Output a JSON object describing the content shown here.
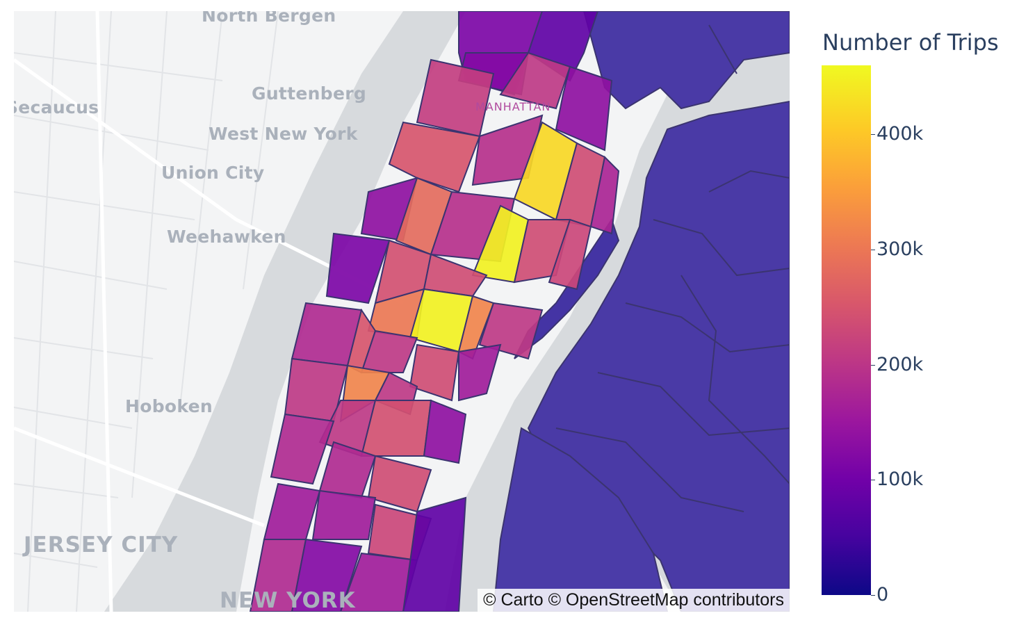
{
  "map": {
    "places": {
      "north_bergen": "North Bergen",
      "secaucus": "Secaucus",
      "guttenberg": "Guttenberg",
      "west_new_york": "West New York",
      "union_city": "Union City",
      "weehawken": "Weehawken",
      "hoboken": "Hoboken",
      "jersey_city": "JERSEY CITY",
      "new_york": "NEW YORK",
      "manhattan": "MANHATTAN"
    },
    "attribution": "© Carto © OpenStreetMap contributors"
  },
  "colorbar": {
    "title": "Number of Trips",
    "ticks": [
      "0",
      "100k",
      "200k",
      "300k",
      "400k"
    ],
    "tick_values": [
      0,
      100000,
      200000,
      300000,
      400000
    ],
    "max": 460000,
    "colorscale": [
      "#0d0887",
      "#46039f",
      "#7201a8",
      "#9c179e",
      "#bd3786",
      "#d8576b",
      "#ed7953",
      "#fb9f3a",
      "#fdca26",
      "#f0f921"
    ]
  },
  "colors": {
    "water": "#d7dadd",
    "land": "#f3f4f5",
    "border": "#3b3470",
    "low_zone": "#4a3aa6"
  }
}
